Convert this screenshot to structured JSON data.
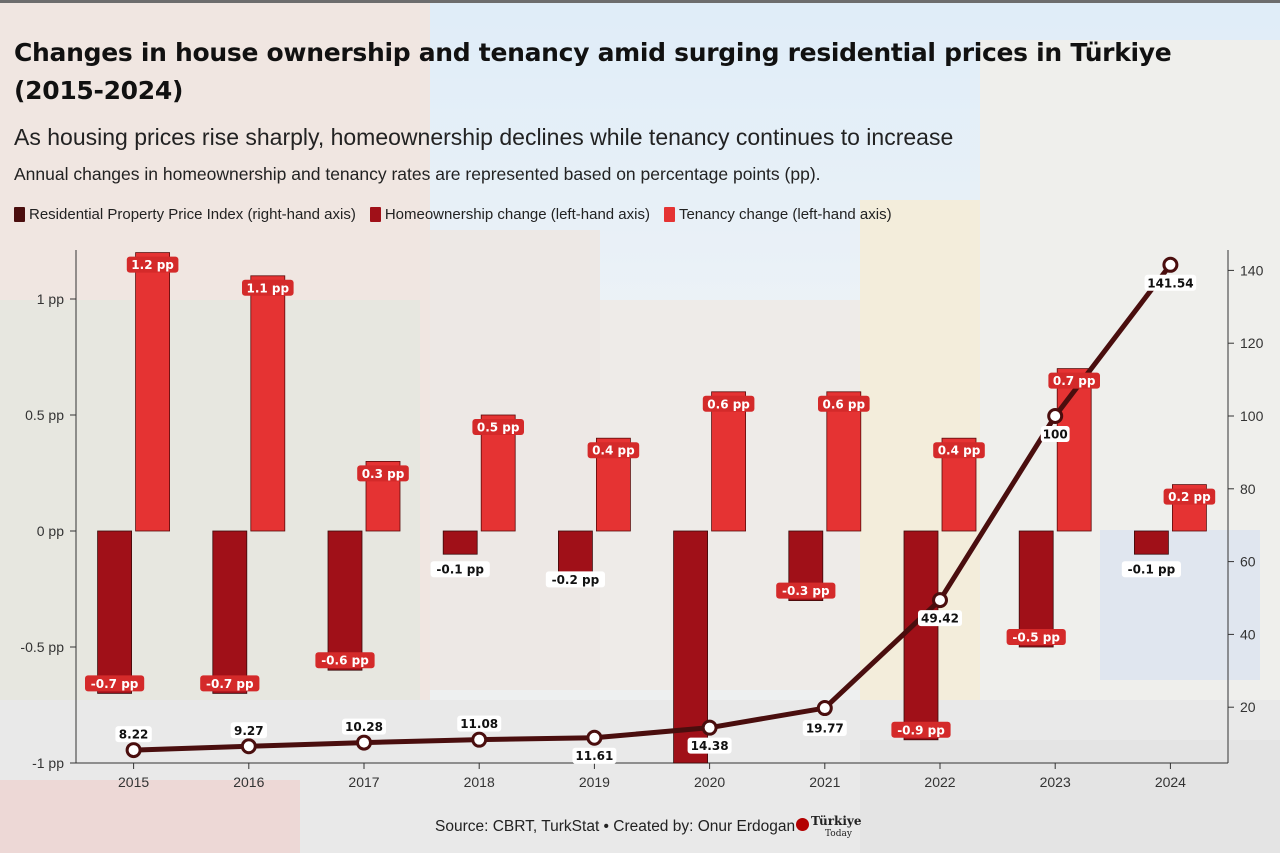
{
  "header": {
    "title": "Changes in house ownership and tenancy amid surging residential prices in Türkiye (2015-2024)",
    "subtitle": "As housing prices rise sharply, homeownership declines while tenancy continues to increase",
    "note": "Annual changes in homeownership and tenancy rates are represented based on percentage points (pp)."
  },
  "legend": [
    {
      "label": "Residential Property Price Index (right-hand axis)",
      "color": "#4a0e0e"
    },
    {
      "label": "Homeownership change (left-hand axis)",
      "color": "#a01018"
    },
    {
      "label": "Tenancy change (left-hand axis)",
      "color": "#e53333"
    }
  ],
  "footer": {
    "source": "Source: CBRT, TurkStat • Created by: Onur Erdogan",
    "logo_text": "Türkiye",
    "logo_sub": "Today"
  },
  "colors": {
    "homeownership": "#a01018",
    "tenancy": "#e53333",
    "price_line": "#4a0e0e",
    "label_badge_red": "#d42a2a"
  },
  "chart_data": {
    "type": "bar+line",
    "title": "Changes in house ownership and tenancy amid surging residential prices in Türkiye (2015-2024)",
    "categories": [
      "2015",
      "2016",
      "2017",
      "2018",
      "2019",
      "2020",
      "2021",
      "2022",
      "2023",
      "2024"
    ],
    "series": [
      {
        "name": "Homeownership change (left-hand axis)",
        "axis": "left",
        "kind": "bar",
        "values": [
          -0.7,
          -0.7,
          -0.6,
          -0.1,
          -0.2,
          -1.0,
          -0.3,
          -0.9,
          -0.5,
          -0.1
        ],
        "labels": [
          "-0.7 pp",
          "-0.7 pp",
          "-0.6 pp",
          "-0.1 pp",
          "-0.2 pp",
          "",
          "-0.3 pp",
          "-0.9 pp",
          "-0.5 pp",
          "-0.1 pp"
        ]
      },
      {
        "name": "Tenancy change (left-hand axis)",
        "axis": "left",
        "kind": "bar",
        "values": [
          1.2,
          1.1,
          0.3,
          0.5,
          0.4,
          0.6,
          0.6,
          0.4,
          0.7,
          0.2
        ],
        "labels": [
          "1.2 pp",
          "1.1 pp",
          "0.3 pp",
          "0.5 pp",
          "0.4 pp",
          "0.6 pp",
          "0.6 pp",
          "0.4 pp",
          "0.7 pp",
          "0.2 pp"
        ]
      },
      {
        "name": "Residential Property Price Index (right-hand axis)",
        "axis": "right",
        "kind": "line",
        "values": [
          8.22,
          9.27,
          10.28,
          11.08,
          11.61,
          14.38,
          19.77,
          49.42,
          100,
          141.54
        ],
        "labels": [
          "8.22",
          "9.27",
          "10.28",
          "11.08",
          "11.61",
          "14.38",
          "19.77",
          "49.42",
          "100",
          "141.54"
        ]
      }
    ],
    "left_axis": {
      "ticks": [
        -1,
        -0.5,
        0,
        0.5,
        1
      ],
      "tick_labels": [
        "-1 pp",
        "-0.5 pp",
        "0 pp",
        "0.5 pp",
        "1 pp"
      ],
      "ylim": [
        -1,
        1.2
      ]
    },
    "right_axis": {
      "ticks": [
        20,
        40,
        60,
        80,
        100,
        120,
        140
      ],
      "tick_labels": [
        "20",
        "40",
        "60",
        "80",
        "100",
        "120",
        "140"
      ],
      "ylim": [
        0,
        150
      ]
    }
  }
}
